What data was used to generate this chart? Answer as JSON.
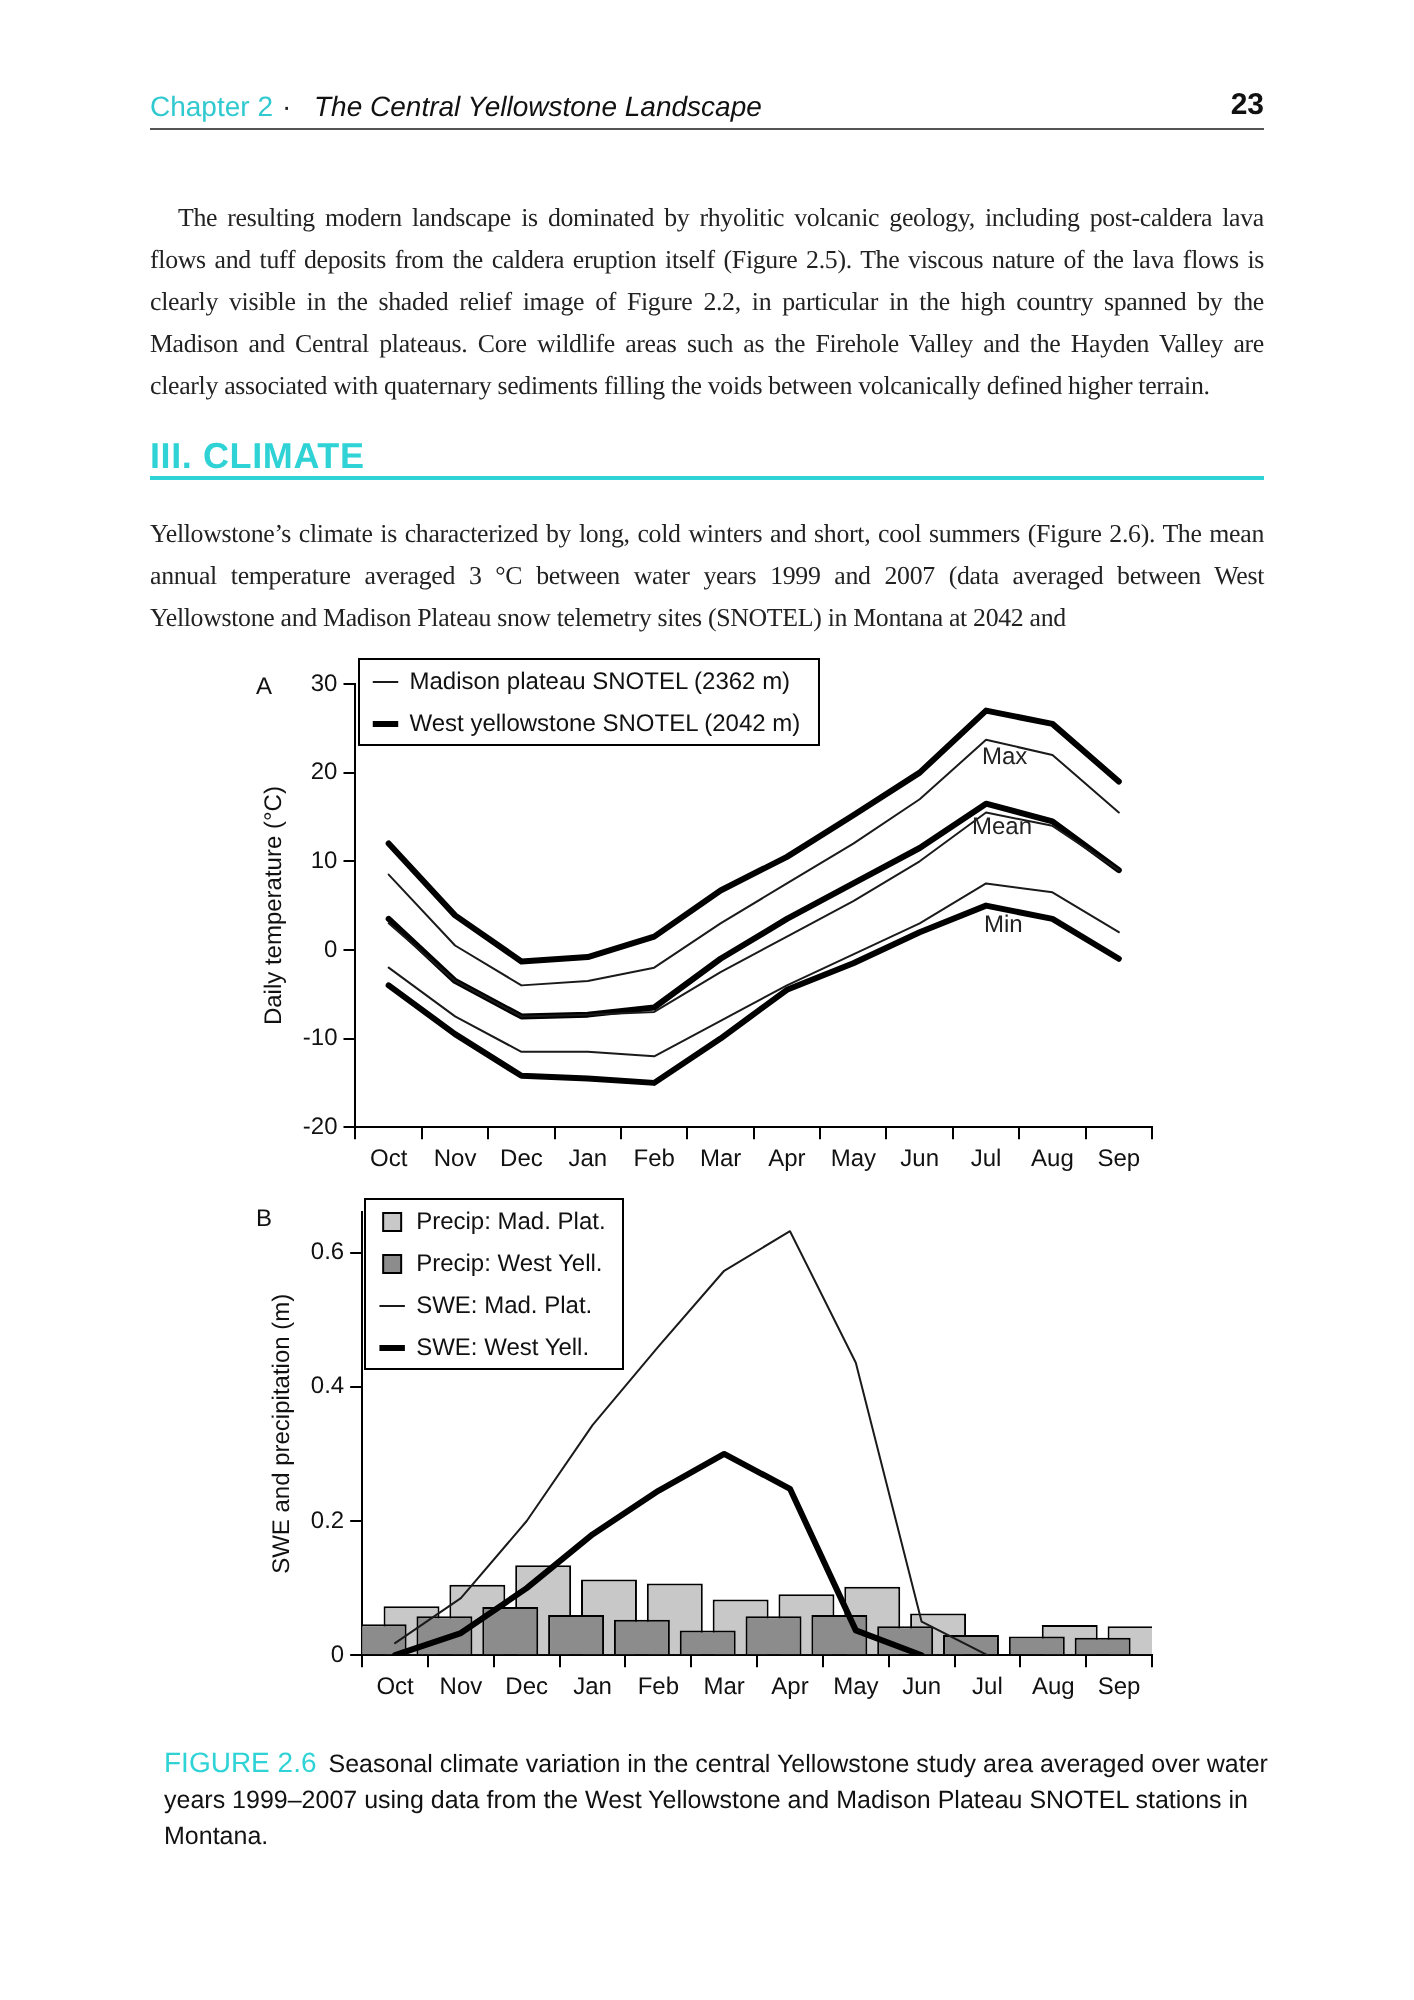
{
  "chart_data": [
    {
      "type": "line",
      "ylabel": "Daily temperature (°C)",
      "categories": [
        "Oct",
        "Nov",
        "Dec",
        "Jan",
        "Feb",
        "Mar",
        "Apr",
        "May",
        "Jun",
        "Jul",
        "Aug",
        "Sep"
      ],
      "ylim": [
        -20,
        30
      ],
      "yticks": [
        -20,
        -10,
        0,
        10,
        20,
        30
      ],
      "legend": "top left",
      "series": [
        {
          "name": "Madison plateau SNOTEL (2362 m)",
          "color": "#1a1a1a",
          "values": [
            8.5,
            0.5,
            -4,
            -3.5,
            -2,
            3,
            7.5,
            12,
            17,
            23.7,
            22,
            15.5
          ]
        },
        {
          "name": "West yellowstone SNOTEL (2042 m)",
          "color": "#000000",
          "values": [
            12,
            3.9,
            -1.3,
            -0.8,
            1.5,
            6.7,
            10.5,
            15.2,
            20,
            27,
            25.5,
            19
          ]
        },
        {
          "color": "#1a1a1a",
          "values": [
            3,
            -3.5,
            -7.5,
            -7.3,
            -7,
            -2.5,
            1.5,
            5.5,
            10,
            15.5,
            14,
            9
          ]
        },
        {
          "color": "#000000",
          "values": [
            3.5,
            -3.5,
            -7.5,
            -7.3,
            -6.5,
            -1,
            3.5,
            7.5,
            11.5,
            16.5,
            14.5,
            9
          ]
        },
        {
          "color": "#1a1a1a",
          "values": [
            -2,
            -7.5,
            -11.5,
            -11.5,
            -12,
            -8,
            -4,
            -0.5,
            3,
            7.5,
            6.5,
            2
          ]
        },
        {
          "color": "#000000",
          "values": [
            -4,
            -9.5,
            -14.2,
            -14.5,
            -15,
            -10,
            -4.5,
            -1.5,
            2,
            5,
            3.5,
            -1
          ]
        }
      ],
      "annotations": [
        "Chapter 2",
        "·",
        "The Central Yellowstone Landscape",
        "23",
        "The resulting modern landscape is dominated by rhyolitic volcanic geology, including post-caldera lava flows and tuff deposits from the caldera eruption itself (Figure 2.5). The viscous nature of the lava flows is clearly visible in the shaded relief image of Figure 2.2, in particular in the high country spanned by the Madison and Central plateaus. Core wildlife areas such as the Firehole Valley and the Hayden Valley are clearly associated with quaternary sediments filling the voids between volcanically defined higher terrain.",
        "III. CLIMATE",
        "Yellowstone’s climate is characterized by long, cold winters and short, cool summers (Figure 2.6). The mean annual temperature averaged 3 °C between water years 1999 and 2007 (data averaged between West Yellowstone and Madison Plateau snow telemetry sites (SNOTEL) in Montana at 2042 and",
        "A",
        "Max",
        "Mean",
        "Min"
      ]
    },
    {
      "type": "bar",
      "ylabel": "SWE and precipitation (m)",
      "categories": [
        "Oct",
        "Nov",
        "Dec",
        "Jan",
        "Feb",
        "Mar",
        "Apr",
        "May",
        "Jun",
        "Jul",
        "Aug",
        "Sep"
      ],
      "ylim": [
        0,
        0.66
      ],
      "yticks": [
        0,
        0.2,
        0.4,
        0.6
      ],
      "legend": "top left",
      "series": [
        {
          "name": "Precip: Mad. Plat.",
          "type": "bar",
          "color": "#c8c8c8",
          "values": [
            0.073,
            0.105,
            0.134,
            0.113,
            0.107,
            0.083,
            0.091,
            0.102,
            0.062,
            null,
            0.045,
            0.043
          ]
        },
        {
          "name": "Precip: West Yell.",
          "type": "bar",
          "color": "#8c8c8c",
          "values": [
            0.046,
            0.058,
            0.072,
            0.06,
            0.053,
            0.037,
            0.058,
            0.06,
            0.043,
            0.03,
            0.028,
            0.026
          ]
        },
        {
          "name": "SWE: Mad. Plat.",
          "type": "line",
          "color": "#1a1a1a",
          "values": [
            0.018,
            0.085,
            0.2,
            0.343,
            0.46,
            0.573,
            0.632,
            0.436,
            0.05,
            0,
            null,
            null
          ]
        },
        {
          "name": "SWE: West Yell.",
          "type": "line",
          "color": "#000000",
          "values": [
            0,
            0.033,
            0.1,
            0.18,
            0.245,
            0.3,
            0.248,
            0.037,
            0,
            null,
            null,
            null
          ]
        }
      ],
      "annotations": [
        "B",
        "FIGURE 2.6",
        "Seasonal climate variation in the central Yellowstone study area averaged over water years 1999–2007 using data from the West Yellowstone and Madison Plateau SNOTEL stations in Montana."
      ]
    }
  ]
}
